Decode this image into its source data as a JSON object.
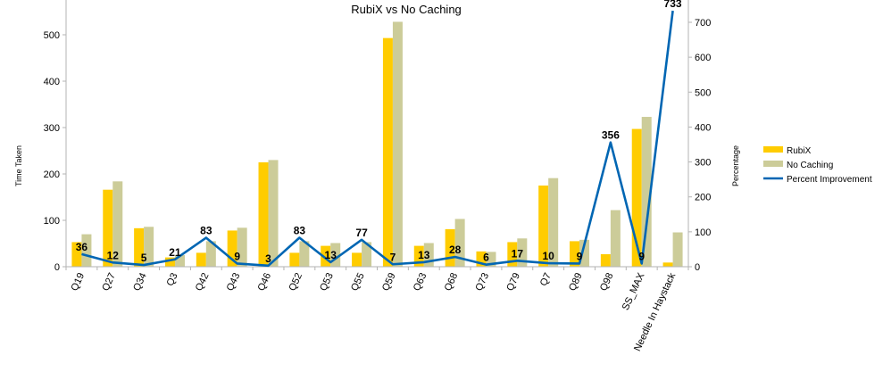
{
  "chart_data": {
    "type": "bar",
    "title": "RubiX vs No Caching",
    "ylabel": "Time Taken",
    "y2label": "Percentage",
    "ylim": [
      0,
      550
    ],
    "y2lim": [
      0,
      733
    ],
    "yticks": [
      0,
      100,
      200,
      300,
      400,
      500
    ],
    "y2ticks": [
      0,
      100,
      200,
      300,
      400,
      500,
      600,
      700
    ],
    "legend_position": "right",
    "grid": false,
    "categories": [
      "Q19",
      "Q27",
      "Q34",
      "Q3",
      "Q42",
      "Q43",
      "Q46",
      "Q52",
      "Q53",
      "Q55",
      "Q59",
      "Q63",
      "Q68",
      "Q73",
      "Q79",
      "Q7",
      "Q89",
      "Q98",
      "SS_MAX",
      "Needle In Haystack"
    ],
    "series": [
      {
        "name": "RubiX",
        "type": "bar",
        "axis": "left",
        "color": "#ffcc00",
        "values": [
          53,
          166,
          83,
          20,
          30,
          78,
          225,
          30,
          45,
          30,
          493,
          45,
          81,
          33,
          53,
          175,
          55,
          27,
          297,
          9
        ]
      },
      {
        "name": "No Caching",
        "type": "bar",
        "axis": "left",
        "color": "#cccc99",
        "values": [
          70,
          184,
          86,
          25,
          55,
          84,
          230,
          55,
          51,
          53,
          528,
          51,
          103,
          32,
          61,
          191,
          58,
          122,
          323,
          74
        ]
      },
      {
        "name": "Percent Improvement",
        "type": "line",
        "axis": "right",
        "color": "#0066b3",
        "values": [
          36,
          12,
          5,
          21,
          83,
          9,
          3,
          83,
          13,
          77,
          7,
          13,
          28,
          6,
          17,
          10,
          9,
          356,
          9,
          733
        ]
      }
    ]
  }
}
